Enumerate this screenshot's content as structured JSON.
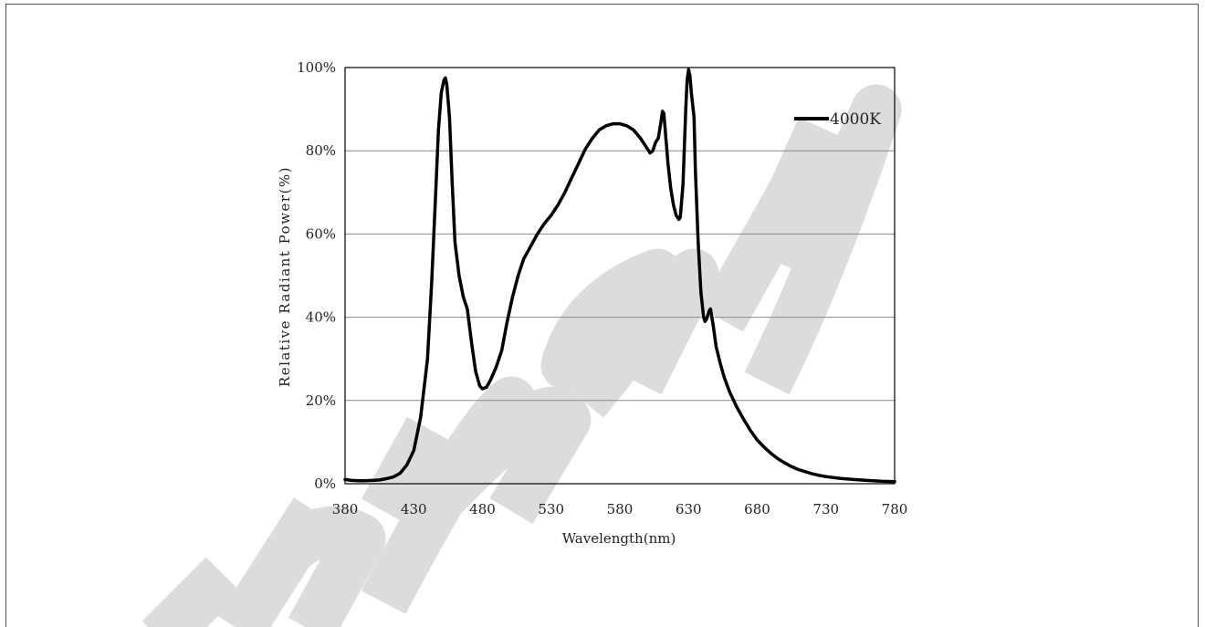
{
  "watermark": {
    "text": "Preliminary",
    "color": "#dcdcdc"
  },
  "chart_data": {
    "type": "line",
    "title": "",
    "xlabel": "Wavelength(nm)",
    "ylabel": "Relative Radiant Power(%)",
    "xlim": [
      380,
      780
    ],
    "ylim": [
      0,
      100
    ],
    "xticks": [
      "380",
      "430",
      "480",
      "530",
      "580",
      "630",
      "680",
      "730",
      "780"
    ],
    "yticks": [
      "0%",
      "20%",
      "40%",
      "60%",
      "80%",
      "100%"
    ],
    "grid": "horizontal",
    "legend_position": "top-right",
    "series": [
      {
        "name": "4000K",
        "color": "#000000",
        "points": [
          [
            380,
            1.0
          ],
          [
            385,
            0.8
          ],
          [
            390,
            0.7
          ],
          [
            395,
            0.7
          ],
          [
            400,
            0.8
          ],
          [
            405,
            0.9
          ],
          [
            410,
            1.2
          ],
          [
            415,
            1.6
          ],
          [
            420,
            2.5
          ],
          [
            425,
            4.5
          ],
          [
            430,
            8.0
          ],
          [
            435,
            16.0
          ],
          [
            440,
            30.0
          ],
          [
            443,
            48.0
          ],
          [
            446,
            70.0
          ],
          [
            448,
            85.0
          ],
          [
            450,
            94.0
          ],
          [
            452,
            97.0
          ],
          [
            453,
            97.5
          ],
          [
            454,
            96.0
          ],
          [
            456,
            88.0
          ],
          [
            458,
            72.0
          ],
          [
            460,
            58.0
          ],
          [
            463,
            50.0
          ],
          [
            466,
            45.0
          ],
          [
            469,
            42.0
          ],
          [
            472,
            34.0
          ],
          [
            475,
            27.0
          ],
          [
            478,
            23.5
          ],
          [
            480,
            22.8
          ],
          [
            483,
            23.2
          ],
          [
            486,
            25.0
          ],
          [
            490,
            28.0
          ],
          [
            494,
            32.0
          ],
          [
            498,
            39.0
          ],
          [
            502,
            45.0
          ],
          [
            506,
            50.0
          ],
          [
            510,
            54.0
          ],
          [
            515,
            57.0
          ],
          [
            520,
            60.0
          ],
          [
            525,
            62.5
          ],
          [
            530,
            64.5
          ],
          [
            535,
            67.0
          ],
          [
            540,
            70.0
          ],
          [
            545,
            73.5
          ],
          [
            550,
            77.0
          ],
          [
            555,
            80.5
          ],
          [
            560,
            83.0
          ],
          [
            565,
            85.0
          ],
          [
            570,
            86.0
          ],
          [
            575,
            86.5
          ],
          [
            580,
            86.5
          ],
          [
            585,
            86.0
          ],
          [
            590,
            85.0
          ],
          [
            595,
            83.0
          ],
          [
            600,
            80.5
          ],
          [
            602,
            79.5
          ],
          [
            604,
            80.0
          ],
          [
            606,
            82.0
          ],
          [
            608,
            83.0
          ],
          [
            610,
            87.0
          ],
          [
            611,
            89.5
          ],
          [
            612,
            89.0
          ],
          [
            613,
            85.0
          ],
          [
            615,
            77.0
          ],
          [
            617,
            71.0
          ],
          [
            619,
            67.0
          ],
          [
            621,
            64.5
          ],
          [
            623,
            63.5
          ],
          [
            624,
            64.0
          ],
          [
            626,
            72.0
          ],
          [
            628,
            90.0
          ],
          [
            629,
            97.0
          ],
          [
            630,
            99.5
          ],
          [
            631,
            98.0
          ],
          [
            632,
            94.0
          ],
          [
            634,
            88.0
          ],
          [
            635,
            75.0
          ],
          [
            637,
            58.0
          ],
          [
            639,
            46.0
          ],
          [
            641,
            40.0
          ],
          [
            642,
            39.0
          ],
          [
            643,
            39.5
          ],
          [
            645,
            41.5
          ],
          [
            646,
            42.0
          ],
          [
            648,
            38.0
          ],
          [
            650,
            33.0
          ],
          [
            653,
            29.0
          ],
          [
            656,
            25.5
          ],
          [
            660,
            22.0
          ],
          [
            665,
            18.5
          ],
          [
            670,
            15.5
          ],
          [
            675,
            12.8
          ],
          [
            680,
            10.5
          ],
          [
            685,
            8.8
          ],
          [
            690,
            7.3
          ],
          [
            695,
            6.0
          ],
          [
            700,
            5.0
          ],
          [
            705,
            4.1
          ],
          [
            710,
            3.4
          ],
          [
            715,
            2.9
          ],
          [
            720,
            2.4
          ],
          [
            725,
            2.0
          ],
          [
            730,
            1.7
          ],
          [
            740,
            1.3
          ],
          [
            750,
            1.0
          ],
          [
            760,
            0.8
          ],
          [
            770,
            0.6
          ],
          [
            780,
            0.5
          ]
        ]
      }
    ]
  }
}
